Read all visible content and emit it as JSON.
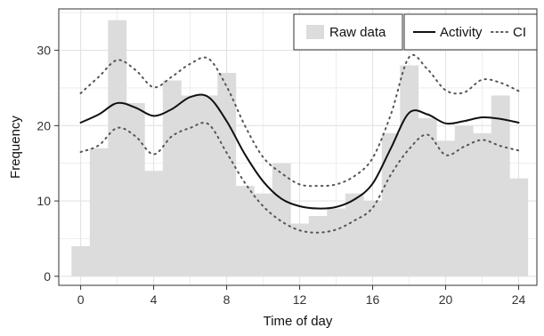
{
  "chart_data": {
    "type": "bar",
    "xlabel": "Time of day",
    "ylabel": "Frequency",
    "xlim": [
      -1.2,
      25.0
    ],
    "ylim": [
      -1.2,
      35.5
    ],
    "xticks": [
      0,
      4,
      8,
      12,
      16,
      20,
      24
    ],
    "yticks": [
      0,
      10,
      20,
      30
    ],
    "grid": true,
    "legend_position": "top-right",
    "colors": {
      "bars": "#dcdcdc",
      "line": "#111111",
      "ci": "#555555",
      "grid": "#e3e3e3",
      "frame": "#333333"
    },
    "histogram": {
      "name": "Raw data",
      "bin_width": 1,
      "bin_centers": [
        0,
        1,
        2,
        3,
        4,
        5,
        6,
        7,
        8,
        9,
        10,
        11,
        12,
        13,
        14,
        15,
        16,
        17,
        18,
        19,
        20,
        21,
        22,
        23,
        24
      ],
      "values": [
        4,
        17,
        34,
        23,
        14,
        26,
        24,
        24,
        27,
        12,
        11,
        15,
        7,
        8,
        9,
        11,
        10,
        19,
        28,
        21,
        18,
        20,
        19,
        24,
        13
      ]
    },
    "series": [
      {
        "name": "Activity",
        "style": "solid",
        "x": [
          0,
          1,
          2,
          3,
          4,
          5,
          6,
          7,
          8,
          9,
          10,
          11,
          12,
          13,
          14,
          15,
          16,
          17,
          18,
          19,
          20,
          21,
          22,
          23,
          24
        ],
        "y": [
          20.4,
          21.5,
          23.0,
          22.4,
          21.3,
          22.2,
          23.8,
          23.8,
          20.6,
          16.2,
          12.6,
          10.3,
          9.3,
          9.0,
          9.2,
          10.2,
          12.3,
          17.0,
          21.7,
          21.5,
          20.3,
          20.6,
          21.1,
          20.9,
          20.4
        ]
      },
      {
        "name": "CI",
        "style": "dotted",
        "x": [
          0,
          1,
          2,
          3,
          4,
          5,
          6,
          7,
          8,
          9,
          10,
          11,
          12,
          13,
          14,
          15,
          16,
          17,
          18,
          19,
          20,
          21,
          22,
          23,
          24
        ],
        "y": [
          24.3,
          26.5,
          28.7,
          27.4,
          25.1,
          26.5,
          28.2,
          28.9,
          25.2,
          20.0,
          15.8,
          13.7,
          12.2,
          12.0,
          12.2,
          13.3,
          15.7,
          21.5,
          29.1,
          27.5,
          24.7,
          24.4,
          26.1,
          25.7,
          24.6
        ]
      },
      {
        "name": "CI",
        "style": "dotted",
        "x": [
          0,
          1,
          2,
          3,
          4,
          5,
          6,
          7,
          8,
          9,
          10,
          11,
          12,
          13,
          14,
          15,
          16,
          17,
          18,
          19,
          20,
          21,
          22,
          23,
          24
        ],
        "y": [
          16.5,
          17.4,
          19.7,
          18.6,
          16.2,
          18.6,
          19.7,
          20.2,
          16.4,
          12.4,
          9.3,
          7.3,
          6.1,
          5.8,
          6.2,
          7.4,
          9.1,
          13.5,
          16.9,
          18.8,
          16.1,
          17.2,
          18.1,
          17.3,
          16.7
        ]
      }
    ],
    "legend": {
      "raw_label": "Raw data",
      "activity_label": "Activity",
      "ci_label": "CI"
    }
  }
}
